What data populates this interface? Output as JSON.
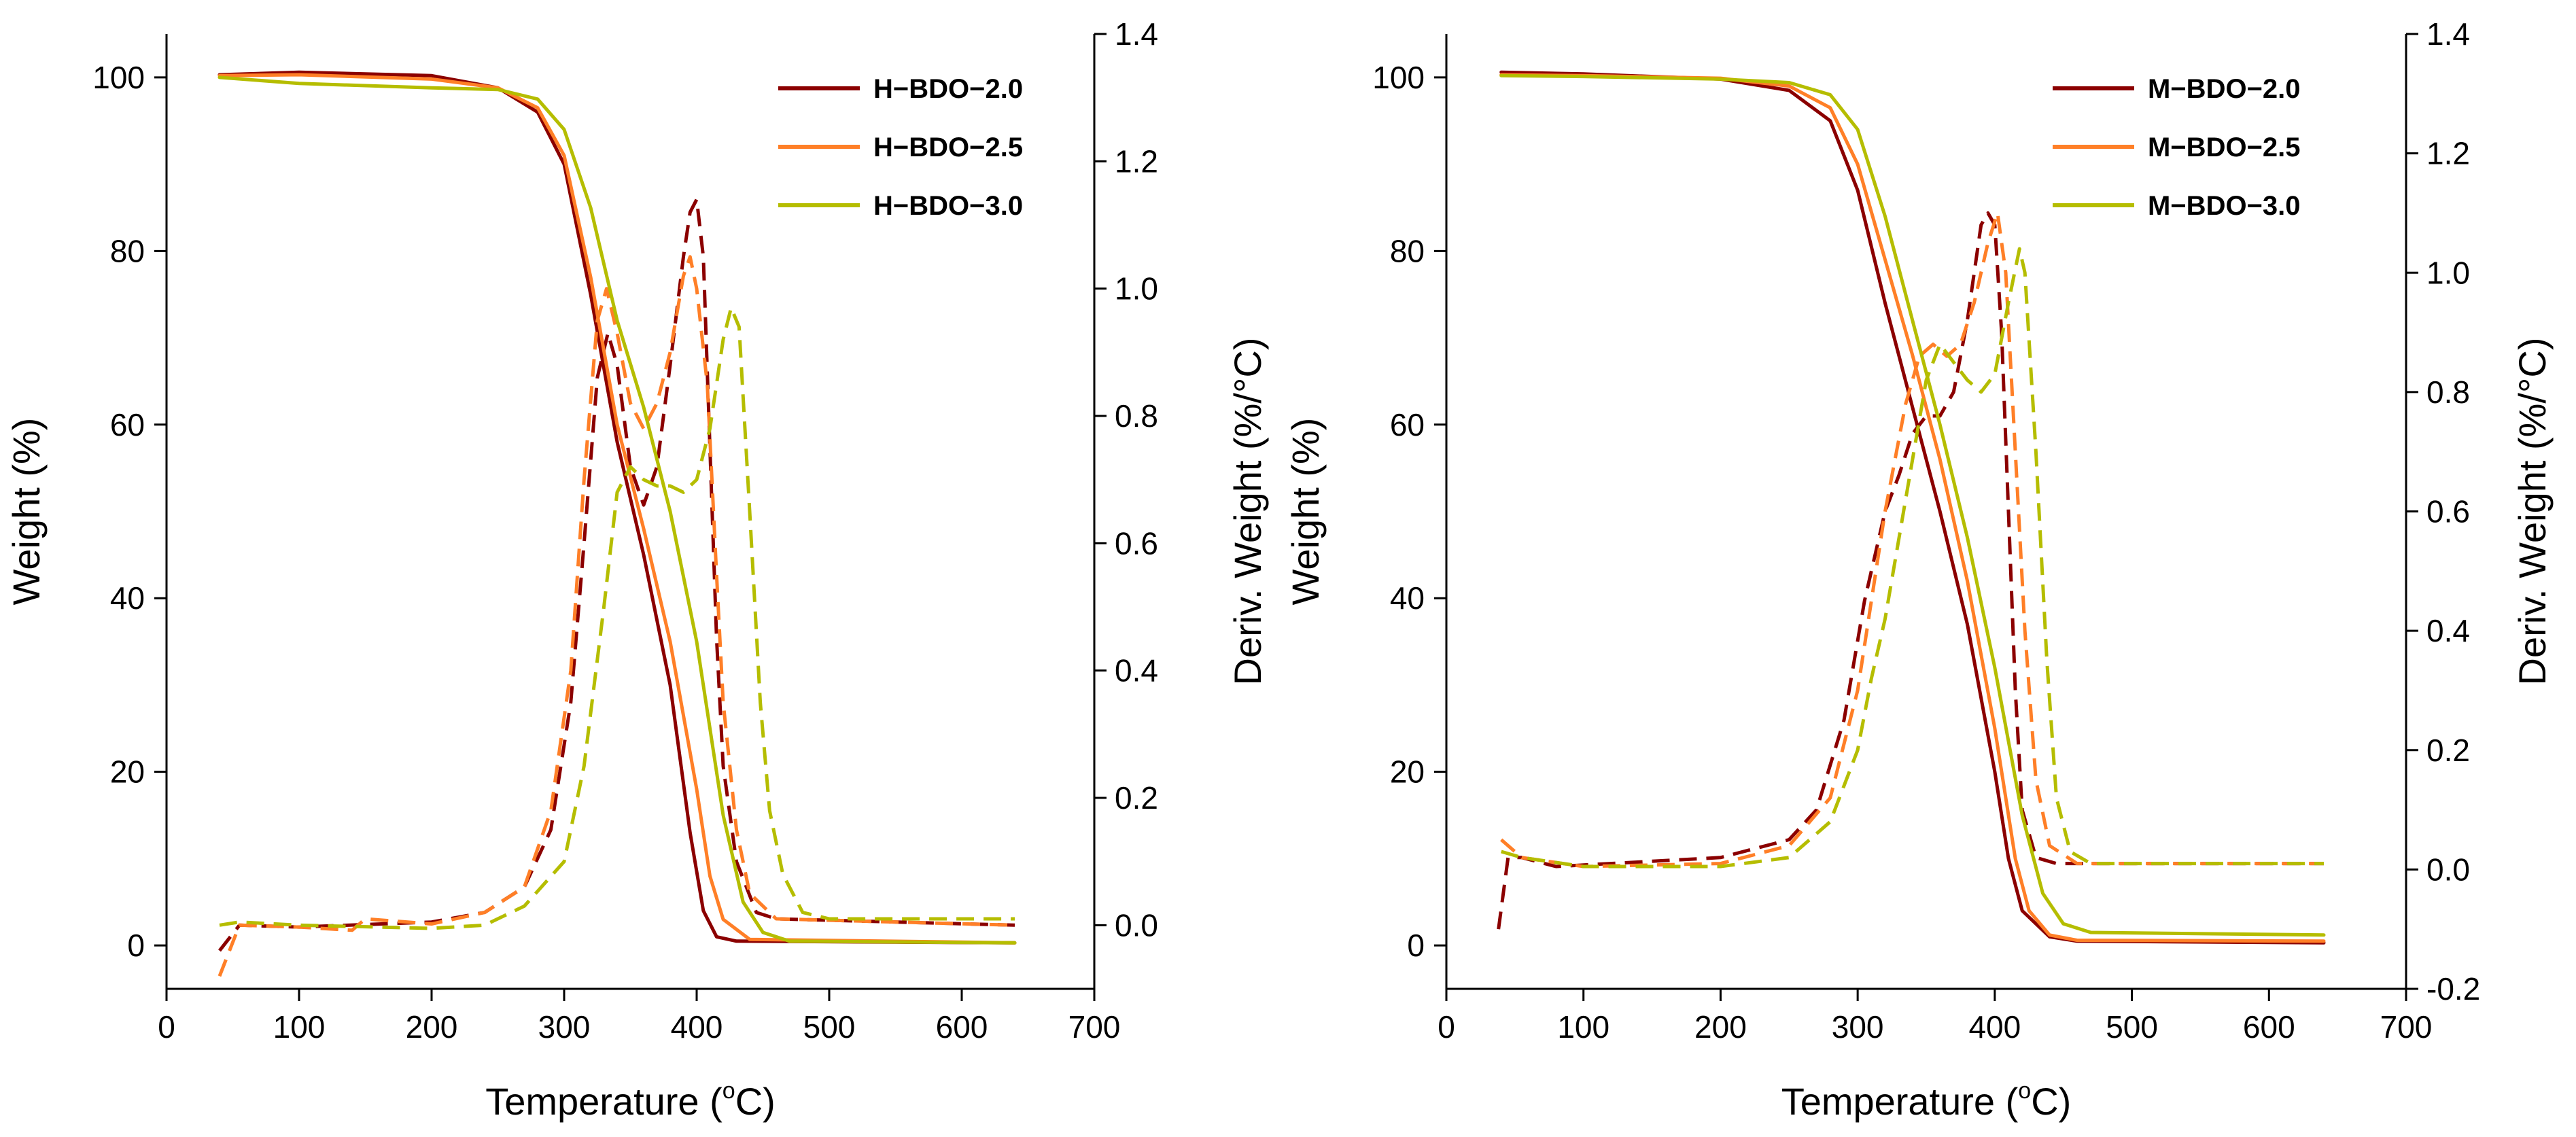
{
  "colors": {
    "series_2_0": "#8B0000",
    "series_2_5": "#FF7F27",
    "series_3_0": "#B5BD00"
  },
  "chart_data": [
    {
      "type": "line",
      "panel": "left",
      "xlabel_main": "Temperature (",
      "xlabel_sup": "o",
      "xlabel_end": "C)",
      "ylabel": "Weight (%)",
      "y2label": "Deriv. Weight (%/°C)",
      "xlim": [
        0,
        700
      ],
      "ylim": [
        -5,
        105
      ],
      "y2lim": [
        -0.1,
        1.4
      ],
      "xticks": [
        "0",
        "100",
        "200",
        "300",
        "400",
        "500",
        "600",
        "700"
      ],
      "yticks": [
        "0",
        "20",
        "40",
        "60",
        "80",
        "100"
      ],
      "y2ticks": [
        "0.0",
        "0.2",
        "0.4",
        "0.6",
        "0.8",
        "1.0",
        "1.2",
        "1.4"
      ],
      "legend_position": "top-right",
      "series": [
        {
          "name": "H−BDO−2.0",
          "color": "#8B0000",
          "weight": [
            [
              40,
              100.3
            ],
            [
              100,
              100.6
            ],
            [
              200,
              100.2
            ],
            [
              250,
              98.8
            ],
            [
              280,
              96
            ],
            [
              300,
              90
            ],
            [
              320,
              75
            ],
            [
              340,
              58
            ],
            [
              360,
              45
            ],
            [
              380,
              30
            ],
            [
              395,
              13
            ],
            [
              405,
              4
            ],
            [
              415,
              1
            ],
            [
              430,
              0.5
            ],
            [
              640,
              0.3
            ]
          ],
          "deriv": [
            [
              40,
              -0.04
            ],
            [
              55,
              0
            ],
            [
              100,
              -0.003
            ],
            [
              200,
              0.005
            ],
            [
              240,
              0.02
            ],
            [
              270,
              0.06
            ],
            [
              290,
              0.15
            ],
            [
              305,
              0.35
            ],
            [
              315,
              0.6
            ],
            [
              325,
              0.86
            ],
            [
              333,
              0.93
            ],
            [
              340,
              0.88
            ],
            [
              350,
              0.72
            ],
            [
              360,
              0.66
            ],
            [
              370,
              0.72
            ],
            [
              380,
              0.88
            ],
            [
              390,
              1.05
            ],
            [
              395,
              1.12
            ],
            [
              400,
              1.14
            ],
            [
              405,
              1.05
            ],
            [
              410,
              0.75
            ],
            [
              415,
              0.45
            ],
            [
              420,
              0.25
            ],
            [
              430,
              0.1
            ],
            [
              445,
              0.02
            ],
            [
              460,
              0.01
            ],
            [
              640,
              0
            ]
          ]
        },
        {
          "name": "H−BDO−2.5",
          "color": "#FF7F27",
          "weight": [
            [
              40,
              100.2
            ],
            [
              100,
              100.3
            ],
            [
              200,
              99.8
            ],
            [
              250,
              98.8
            ],
            [
              280,
              96.5
            ],
            [
              300,
              91
            ],
            [
              320,
              77
            ],
            [
              340,
              60
            ],
            [
              360,
              48
            ],
            [
              380,
              35
            ],
            [
              400,
              18
            ],
            [
              410,
              8
            ],
            [
              420,
              3
            ],
            [
              440,
              0.7
            ],
            [
              640,
              0.3
            ]
          ],
          "deriv": [
            [
              40,
              -0.08
            ],
            [
              55,
              0
            ],
            [
              100,
              -0.003
            ],
            [
              140,
              -0.008
            ],
            [
              150,
              0.01
            ],
            [
              200,
              0.002
            ],
            [
              240,
              0.02
            ],
            [
              270,
              0.06
            ],
            [
              290,
              0.18
            ],
            [
              305,
              0.4
            ],
            [
              315,
              0.7
            ],
            [
              325,
              0.95
            ],
            [
              332,
              1.0
            ],
            [
              340,
              0.93
            ],
            [
              350,
              0.82
            ],
            [
              360,
              0.78
            ],
            [
              370,
              0.82
            ],
            [
              380,
              0.9
            ],
            [
              390,
              1.02
            ],
            [
              395,
              1.05
            ],
            [
              400,
              1.0
            ],
            [
              408,
              0.85
            ],
            [
              415,
              0.55
            ],
            [
              420,
              0.35
            ],
            [
              430,
              0.15
            ],
            [
              440,
              0.05
            ],
            [
              460,
              0.01
            ],
            [
              640,
              0
            ]
          ]
        },
        {
          "name": "H−BDO−3.0",
          "color": "#B5BD00",
          "weight": [
            [
              40,
              100
            ],
            [
              100,
              99.3
            ],
            [
              200,
              98.8
            ],
            [
              250,
              98.6
            ],
            [
              280,
              97.5
            ],
            [
              300,
              94
            ],
            [
              320,
              85
            ],
            [
              340,
              72
            ],
            [
              360,
              62
            ],
            [
              380,
              50
            ],
            [
              400,
              35
            ],
            [
              420,
              15
            ],
            [
              435,
              5
            ],
            [
              450,
              1.5
            ],
            [
              470,
              0.5
            ],
            [
              640,
              0.3
            ]
          ],
          "deriv": [
            [
              40,
              0
            ],
            [
              55,
              0.005
            ],
            [
              100,
              0
            ],
            [
              200,
              -0.005
            ],
            [
              240,
              0
            ],
            [
              270,
              0.03
            ],
            [
              300,
              0.1
            ],
            [
              315,
              0.25
            ],
            [
              330,
              0.5
            ],
            [
              340,
              0.68
            ],
            [
              350,
              0.72
            ],
            [
              360,
              0.7
            ],
            [
              370,
              0.69
            ],
            [
              380,
              0.69
            ],
            [
              390,
              0.68
            ],
            [
              400,
              0.7
            ],
            [
              410,
              0.78
            ],
            [
              420,
              0.92
            ],
            [
              426,
              0.97
            ],
            [
              432,
              0.94
            ],
            [
              440,
              0.65
            ],
            [
              448,
              0.35
            ],
            [
              455,
              0.18
            ],
            [
              465,
              0.08
            ],
            [
              480,
              0.02
            ],
            [
              500,
              0.01
            ],
            [
              640,
              0.01
            ]
          ]
        }
      ]
    },
    {
      "type": "line",
      "panel": "right",
      "xlabel_main": "Temperature (",
      "xlabel_sup": "o",
      "xlabel_end": "C)",
      "ylabel": "Weight (%)",
      "y2label": "Deriv. Weight (%/°C)",
      "xlim": [
        0,
        700
      ],
      "ylim": [
        -5,
        105
      ],
      "y2lim": [
        -0.2,
        1.4
      ],
      "xticks": [
        "0",
        "100",
        "200",
        "300",
        "400",
        "500",
        "600",
        "700"
      ],
      "yticks": [
        "0",
        "20",
        "40",
        "60",
        "80",
        "100"
      ],
      "y2ticks": [
        "-0.2",
        "0.0",
        "0.2",
        "0.4",
        "0.6",
        "0.8",
        "1.0",
        "1.2",
        "1.4"
      ],
      "legend_position": "top-right",
      "series": [
        {
          "name": "M−BDO−2.0",
          "color": "#8B0000",
          "weight": [
            [
              40,
              100.6
            ],
            [
              100,
              100.4
            ],
            [
              200,
              99.8
            ],
            [
              250,
              98.5
            ],
            [
              280,
              95
            ],
            [
              300,
              87
            ],
            [
              320,
              74
            ],
            [
              340,
              62
            ],
            [
              360,
              50
            ],
            [
              380,
              37
            ],
            [
              400,
              20
            ],
            [
              410,
              10
            ],
            [
              420,
              4
            ],
            [
              440,
              1
            ],
            [
              460,
              0.5
            ],
            [
              640,
              0.3
            ]
          ],
          "deriv": [
            [
              38,
              -0.1
            ],
            [
              45,
              0.02
            ],
            [
              55,
              0.02
            ],
            [
              80,
              0.005
            ],
            [
              200,
              0.02
            ],
            [
              250,
              0.05
            ],
            [
              270,
              0.1
            ],
            [
              290,
              0.25
            ],
            [
              305,
              0.45
            ],
            [
              320,
              0.6
            ],
            [
              330,
              0.66
            ],
            [
              340,
              0.73
            ],
            [
              350,
              0.76
            ],
            [
              360,
              0.76
            ],
            [
              370,
              0.8
            ],
            [
              380,
              0.92
            ],
            [
              390,
              1.08
            ],
            [
              395,
              1.1
            ],
            [
              400,
              1.08
            ],
            [
              405,
              0.9
            ],
            [
              410,
              0.6
            ],
            [
              415,
              0.3
            ],
            [
              420,
              0.1
            ],
            [
              430,
              0.02
            ],
            [
              445,
              0.01
            ],
            [
              640,
              0.01
            ]
          ]
        },
        {
          "name": "M−BDO−2.5",
          "color": "#FF7F27",
          "weight": [
            [
              40,
              100.3
            ],
            [
              100,
              100.2
            ],
            [
              200,
              99.9
            ],
            [
              250,
              99
            ],
            [
              280,
              96.5
            ],
            [
              300,
              90
            ],
            [
              320,
              79
            ],
            [
              340,
              68
            ],
            [
              360,
              56
            ],
            [
              380,
              42
            ],
            [
              400,
              25
            ],
            [
              415,
              10
            ],
            [
              425,
              4
            ],
            [
              440,
              1.2
            ],
            [
              460,
              0.6
            ],
            [
              640,
              0.5
            ]
          ],
          "deriv": [
            [
              40,
              0.05
            ],
            [
              55,
              0.02
            ],
            [
              100,
              0.005
            ],
            [
              200,
              0.01
            ],
            [
              250,
              0.04
            ],
            [
              280,
              0.12
            ],
            [
              300,
              0.3
            ],
            [
              320,
              0.6
            ],
            [
              335,
              0.78
            ],
            [
              345,
              0.86
            ],
            [
              355,
              0.88
            ],
            [
              365,
              0.86
            ],
            [
              375,
              0.88
            ],
            [
              385,
              0.95
            ],
            [
              395,
              1.05
            ],
            [
              402,
              1.1
            ],
            [
              408,
              1.0
            ],
            [
              415,
              0.7
            ],
            [
              422,
              0.4
            ],
            [
              430,
              0.15
            ],
            [
              440,
              0.04
            ],
            [
              460,
              0.01
            ],
            [
              640,
              0.01
            ]
          ]
        },
        {
          "name": "M−BDO−3.0",
          "color": "#B5BD00",
          "weight": [
            [
              40,
              100.2
            ],
            [
              100,
              100.1
            ],
            [
              200,
              99.8
            ],
            [
              250,
              99.4
            ],
            [
              280,
              98
            ],
            [
              300,
              94
            ],
            [
              320,
              84
            ],
            [
              340,
              72
            ],
            [
              360,
              60
            ],
            [
              380,
              47
            ],
            [
              400,
              32
            ],
            [
              420,
              15
            ],
            [
              435,
              6
            ],
            [
              450,
              2.5
            ],
            [
              470,
              1.5
            ],
            [
              640,
              1.2
            ]
          ],
          "deriv": [
            [
              40,
              0.03
            ],
            [
              55,
              0.02
            ],
            [
              100,
              0.005
            ],
            [
              200,
              0.005
            ],
            [
              250,
              0.02
            ],
            [
              280,
              0.08
            ],
            [
              300,
              0.2
            ],
            [
              310,
              0.32
            ],
            [
              320,
              0.42
            ],
            [
              335,
              0.62
            ],
            [
              350,
              0.82
            ],
            [
              360,
              0.88
            ],
            [
              370,
              0.85
            ],
            [
              380,
              0.82
            ],
            [
              390,
              0.8
            ],
            [
              400,
              0.83
            ],
            [
              410,
              0.95
            ],
            [
              418,
              1.04
            ],
            [
              422,
              1.0
            ],
            [
              430,
              0.7
            ],
            [
              438,
              0.35
            ],
            [
              445,
              0.12
            ],
            [
              455,
              0.03
            ],
            [
              470,
              0.01
            ],
            [
              640,
              0.01
            ]
          ]
        }
      ]
    }
  ]
}
